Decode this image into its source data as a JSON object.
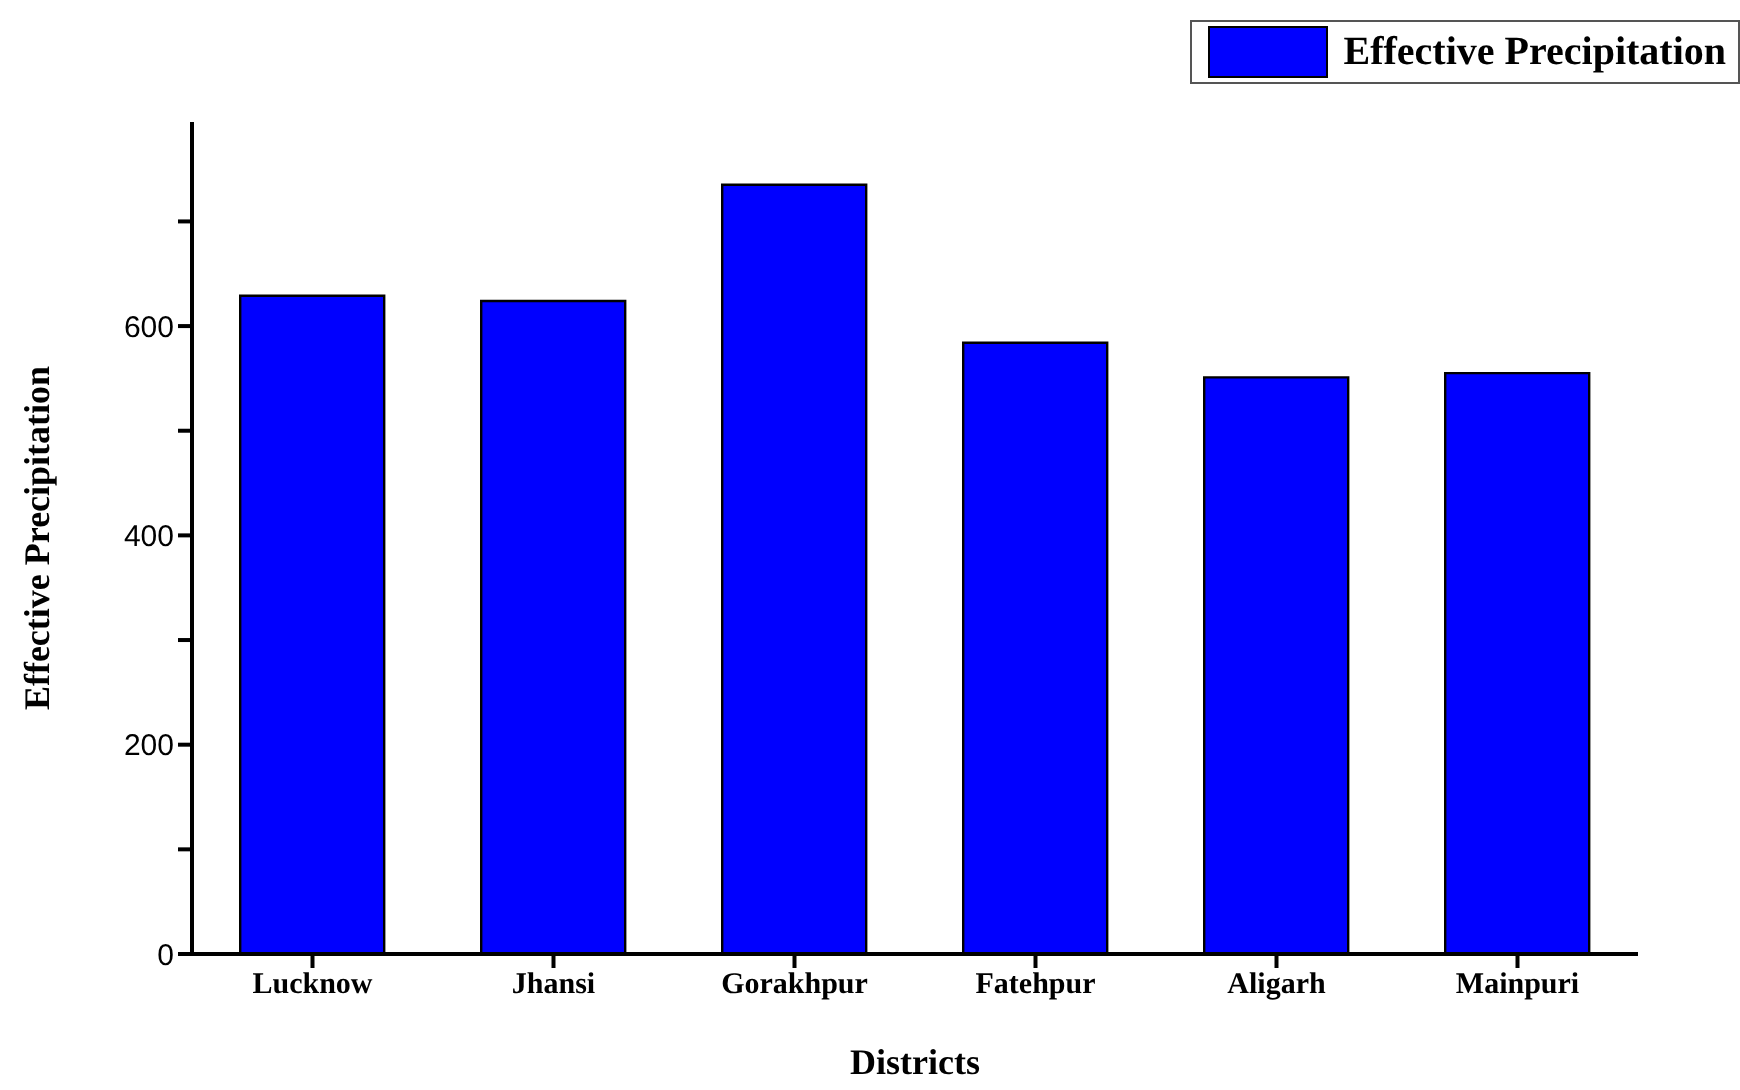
{
  "chart_data": {
    "type": "bar",
    "xlabel": "Districts",
    "ylabel": "Effective Precipitation",
    "categories": [
      "Lucknow",
      "Jhansi",
      "Gorakhpur",
      "Fatehpur",
      "Aligarh",
      "Mainpuri"
    ],
    "series": [
      {
        "name": "Effective Precipitation",
        "color": "#0000ff",
        "values": [
          629,
          624,
          735,
          584,
          551,
          555
        ]
      }
    ],
    "ylim": [
      0,
      795
    ],
    "yticks": [
      0,
      {
        "value": 100,
        "label": null
      },
      200,
      {
        "value": 300,
        "label": null
      },
      400,
      {
        "value": 500,
        "label": null
      },
      600,
      {
        "value": 700,
        "label": null
      }
    ],
    "grid": false,
    "legend": "top right"
  }
}
